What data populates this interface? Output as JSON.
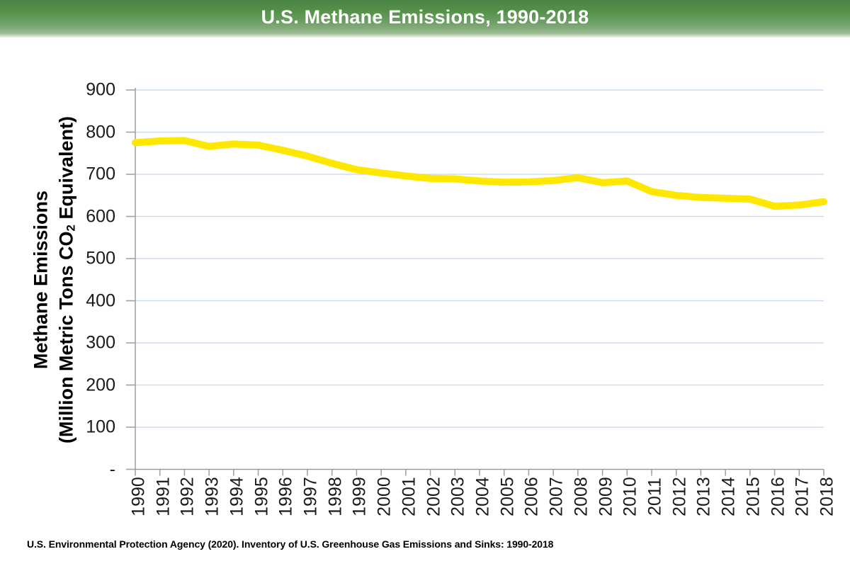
{
  "header": {
    "title": "U.S. Methane Emissions, 1990-2018"
  },
  "y_axis": {
    "title_line1": "Methane Emissions",
    "title_line2_prefix": "(Million Metric Tons CO",
    "title_subscript": "2",
    "title_line2_suffix": " Equivalent)"
  },
  "footer": {
    "source": "U.S. Environmental Protection Agency (2020). Inventory of U.S. Greenhouse Gas Emissions and Sinks: 1990-2018"
  },
  "chart_data": {
    "type": "line",
    "title": "U.S. Methane Emissions, 1990-2018",
    "xlabel": "",
    "ylabel": "Methane Emissions (Million Metric Tons CO2 Equivalent)",
    "categories": [
      "1990",
      "1991",
      "1992",
      "1993",
      "1994",
      "1995",
      "1996",
      "1997",
      "1998",
      "1999",
      "2000",
      "2001",
      "2002",
      "2003",
      "2004",
      "2005",
      "2006",
      "2007",
      "2008",
      "2009",
      "2010",
      "2011",
      "2012",
      "2013",
      "2014",
      "2015",
      "2016",
      "2017",
      "2018"
    ],
    "values": [
      775,
      779,
      780,
      766,
      772,
      769,
      757,
      743,
      726,
      711,
      703,
      696,
      690,
      689,
      684,
      681,
      682,
      685,
      692,
      680,
      684,
      659,
      650,
      645,
      643,
      641,
      624,
      627,
      635
    ],
    "ylim": [
      0,
      900
    ],
    "ytick_interval": 100,
    "ytick_labels": [
      "900",
      "800",
      "700",
      "600",
      "500",
      "400",
      "300",
      "200",
      "100",
      "-"
    ],
    "grid": true,
    "legend": "none",
    "line_color": "#FFE800",
    "line_width": 10,
    "gridline_color": "#C5D7EE",
    "axis_color": "#9D9D9D",
    "source": "U.S. Environmental Protection Agency (2020). Inventory of U.S. Greenhouse Gas Emissions and Sinks: 1990-2018"
  }
}
